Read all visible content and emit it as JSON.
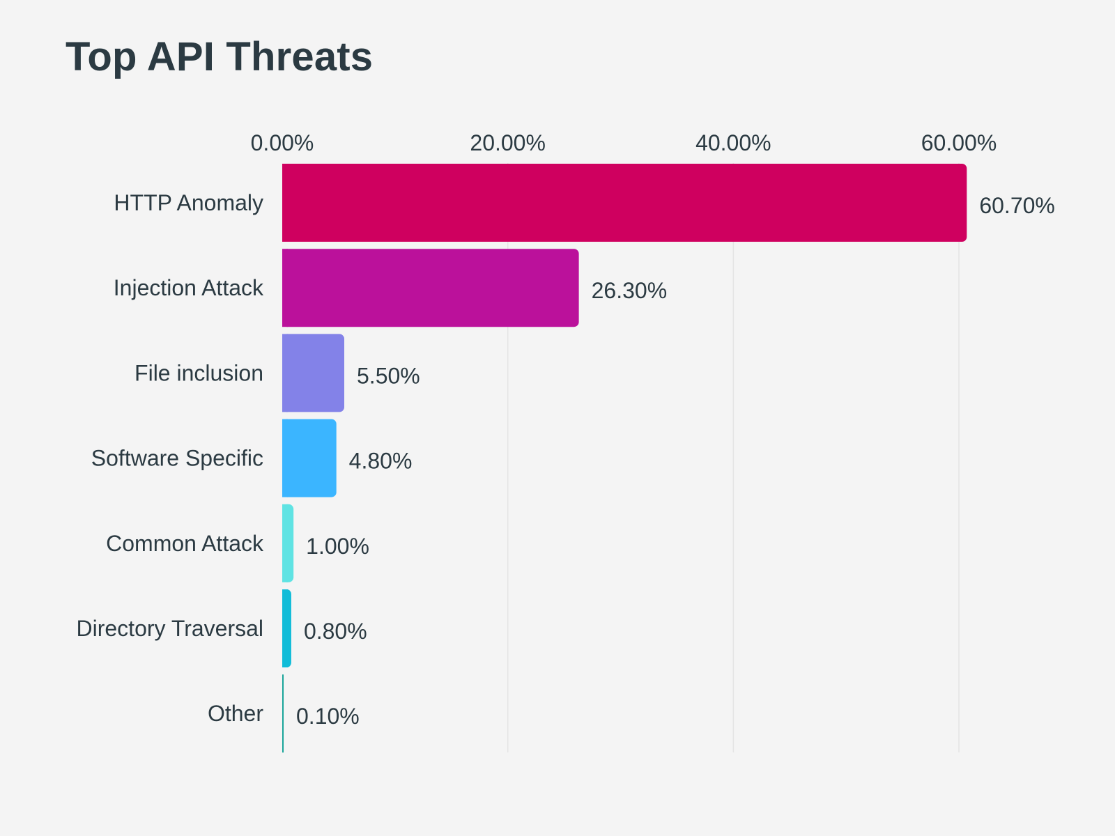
{
  "chart_data": {
    "type": "bar",
    "orientation": "horizontal",
    "title": "Top API Threats",
    "xlabel": "",
    "ylabel": "",
    "xlim": [
      0,
      60
    ],
    "ticks": [
      "0.00%",
      "20.00%",
      "40.00%",
      "60.00%"
    ],
    "tick_values": [
      0,
      20,
      40,
      60
    ],
    "grid": true,
    "categories": [
      "HTTP Anomaly",
      "Injection Attack",
      "File inclusion",
      "Software Specific",
      "Common Attack",
      "Directory Traversal",
      "Other"
    ],
    "values": [
      60.7,
      26.3,
      5.5,
      4.8,
      1.0,
      0.8,
      0.1
    ],
    "value_labels": [
      "60.70%",
      "26.30%",
      "5.50%",
      "4.80%",
      "1.00%",
      "0.80%",
      "0.10%"
    ],
    "colors": [
      "#cf005f",
      "#bb119b",
      "#8382e8",
      "#3bb5ff",
      "#5fe3e3",
      "#10bcd8",
      "#1aa59a"
    ]
  }
}
